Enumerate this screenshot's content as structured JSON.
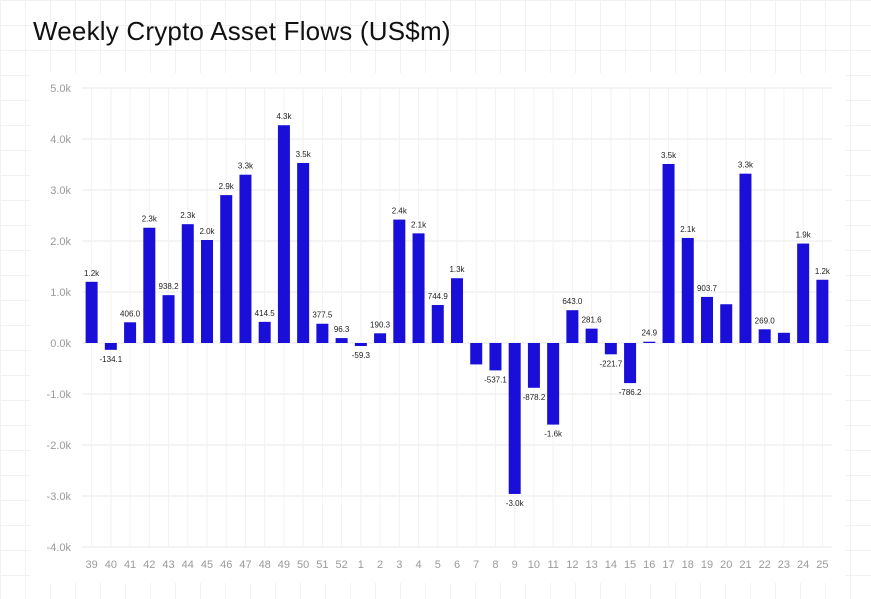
{
  "title": "Weekly Crypto Asset Flows (US$m)",
  "colors": {
    "bar": "#1a0fd9",
    "grid": "#e9e9e9",
    "tick": "#9a9a9a",
    "label": "#222222"
  },
  "chart_data": {
    "type": "bar",
    "title": "Weekly Crypto Asset Flows (US$m)",
    "xlabel": "",
    "ylabel": "",
    "ylim": [
      -4000,
      5000
    ],
    "yticks": [
      5000,
      4000,
      3000,
      2000,
      1000,
      0,
      -1000,
      -2000,
      -3000,
      -4000
    ],
    "ytick_labels": [
      "5.0k",
      "4.0k",
      "3.0k",
      "2.0k",
      "1.0k",
      "0.0k",
      "-1.0k",
      "-2.0k",
      "-3.0k",
      "-4.0k"
    ],
    "grid": true,
    "categories": [
      "39",
      "40",
      "41",
      "42",
      "43",
      "44",
      "45",
      "46",
      "47",
      "48",
      "49",
      "50",
      "51",
      "52",
      "1",
      "2",
      "3",
      "4",
      "5",
      "6",
      "7",
      "8",
      "9",
      "10",
      "11",
      "12",
      "13",
      "14",
      "15",
      "16",
      "17",
      "18",
      "19",
      "20",
      "21",
      "22",
      "23",
      "24",
      "25"
    ],
    "values": [
      1200,
      -134.1,
      406.0,
      2260,
      938.2,
      2330,
      2020,
      2900,
      3300,
      414.5,
      4270,
      3530,
      377.5,
      96.3,
      -59.3,
      190.3,
      2420,
      2150,
      744.9,
      1270,
      -420,
      -537.1,
      -2960,
      -878.2,
      -1600,
      643.0,
      281.6,
      -221.7,
      -786.2,
      24.9,
      3510,
      2060,
      903.7,
      760,
      3320,
      269.0,
      200,
      1950,
      1240
    ],
    "data_labels": [
      "1.2k",
      "-134.1",
      "406.0",
      "2.3k",
      "938.2",
      "2.3k",
      "2.0k",
      "2.9k",
      "3.3k",
      "414.5",
      "4.3k",
      "3.5k",
      "377.5",
      "96.3",
      "-59.3",
      "190.3",
      "2.4k",
      "2.1k",
      "744.9",
      "1.3k",
      "",
      "-537.1",
      "-3.0k",
      "-878.2",
      "-1.6k",
      "643.0",
      "281.6",
      "-221.7",
      "-786.2",
      "24.9",
      "3.5k",
      "2.1k",
      "903.7",
      "",
      "3.3k",
      "269.0",
      "",
      "1.9k",
      "1.2k"
    ]
  }
}
